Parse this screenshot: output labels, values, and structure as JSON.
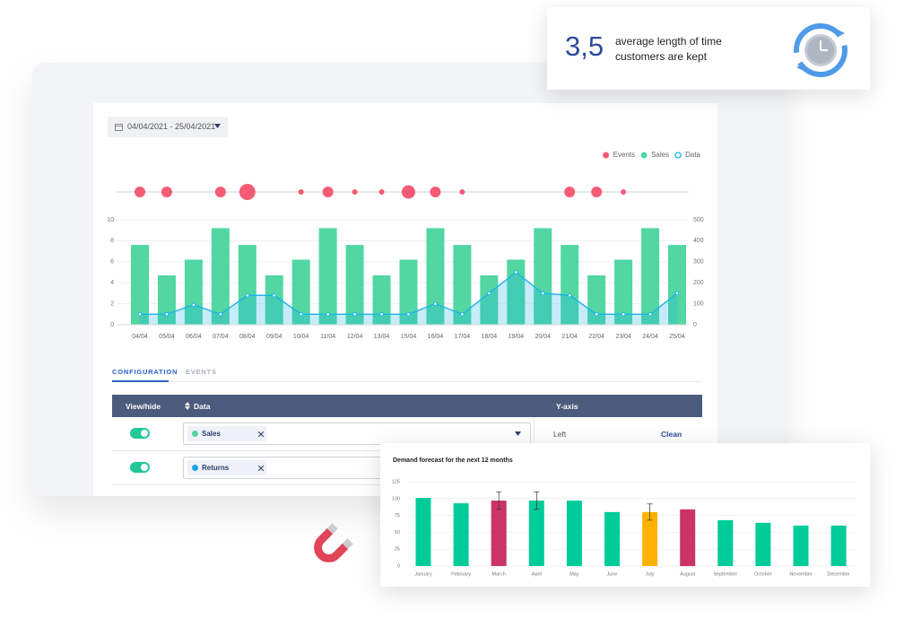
{
  "kpi": {
    "value": "3,5",
    "text_line1": "average length of time",
    "text_line2": "customers are kept"
  },
  "date_range": "04/04/2021 - 25/04/2021",
  "chart_data": [
    {
      "type": "combo",
      "categories": [
        "04/04",
        "05/04",
        "06/04",
        "07/04",
        "08/04",
        "09/04",
        "10/04",
        "11/04",
        "12/04",
        "13/04",
        "15/04",
        "16/04",
        "17/04",
        "18/04",
        "19/04",
        "20/04",
        "21/04",
        "22/04",
        "23/04",
        "24/04",
        "25/04"
      ],
      "series": [
        {
          "name": "Events",
          "type": "bubble",
          "color": "#f45b74",
          "values": [
            2,
            2,
            null,
            2,
            3,
            null,
            1,
            2,
            1,
            1,
            2.5,
            2,
            1,
            null,
            null,
            null,
            2,
            2,
            1,
            null,
            null
          ]
        },
        {
          "name": "Sales",
          "type": "bar",
          "color": "#52d6a2",
          "values": [
            7.6,
            4.7,
            6.2,
            9.2,
            7.6,
            4.7,
            6.2,
            9.2,
            7.6,
            4.7,
            6.2,
            9.2,
            7.6,
            4.7,
            6.2,
            9.2,
            7.6,
            4.7,
            6.2,
            9.2,
            7.6
          ]
        },
        {
          "name": "Data",
          "type": "line",
          "axis": "y2",
          "color": "#1bb5e8",
          "values": [
            50,
            50,
            95,
            50,
            140,
            140,
            50,
            50,
            50,
            50,
            50,
            100,
            50,
            150,
            250,
            150,
            140,
            50,
            50,
            50,
            150
          ]
        }
      ],
      "ylim": [
        0,
        10
      ],
      "yticks": [
        0,
        2,
        4,
        6,
        8,
        10
      ],
      "y2lim": [
        0,
        500
      ],
      "y2ticks": [
        0,
        100,
        200,
        300,
        400,
        500
      ],
      "grid": true,
      "legend": "top-right"
    },
    {
      "type": "bar",
      "title": "Demand forecast for the next 12 months",
      "categories": [
        "January",
        "February",
        "March",
        "April",
        "May",
        "June",
        "July",
        "August",
        "September",
        "October",
        "November",
        "December"
      ],
      "values": [
        101,
        93,
        97,
        97,
        97,
        80,
        80,
        84,
        68,
        64,
        60,
        60
      ],
      "errors": [
        null,
        null,
        13,
        13,
        null,
        null,
        12,
        null,
        null,
        null,
        null,
        null
      ],
      "colors": [
        "#00cc99",
        "#00cc99",
        "#cc3366",
        "#00cc99",
        "#00cc99",
        "#00cc99",
        "#ffb300",
        "#cc3366",
        "#00cc99",
        "#00cc99",
        "#00cc99",
        "#00cc99"
      ],
      "ylim": [
        0,
        125
      ],
      "yticks": [
        0,
        25,
        50,
        75,
        100,
        125
      ],
      "grid": true
    }
  ],
  "tabs": [
    "CONFIGURATION",
    "EVENTS"
  ],
  "table": {
    "columns": [
      "View/hide",
      "Data",
      "Y-axis"
    ],
    "rows": [
      {
        "visible": true,
        "series": "Sales",
        "color": "#52d6a2",
        "axis": "Left",
        "action": "Clean"
      },
      {
        "visible": true,
        "series": "Returns",
        "color": "#1ba1e2"
      }
    ]
  }
}
